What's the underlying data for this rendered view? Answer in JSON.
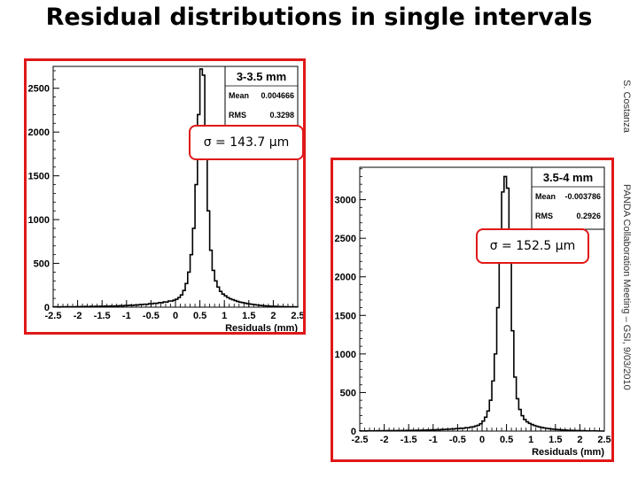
{
  "slide": {
    "title": "Residual distributions in single intervals",
    "author": "S. Costanza",
    "footer": "PANDA Collaboration Meeting – GSI, 9/03/2010"
  },
  "chart_data": [
    {
      "type": "histogram",
      "title": "3-3.5 mm",
      "xlabel": "Residuals (mm)",
      "xlim": [
        -2.5,
        2.5
      ],
      "ylim": [
        0,
        2750
      ],
      "xticks": [
        "-2.5",
        "-2",
        "-1.5",
        "-1",
        "-0.5",
        "0",
        "0.5",
        "1",
        "1.5",
        "2",
        "2.5"
      ],
      "yticks": [
        0,
        500,
        1000,
        1500,
        2000,
        2500
      ],
      "stats": [
        {
          "label": "Mean",
          "value": "0.004666"
        },
        {
          "label": "RMS",
          "value": "0.3298"
        }
      ],
      "sigma_label": "σ = 143.7 μm",
      "bin_width": 0.05,
      "x_start": -2.5,
      "counts": [
        3,
        4,
        2,
        5,
        3,
        6,
        4,
        5,
        3,
        6,
        5,
        7,
        6,
        8,
        5,
        9,
        7,
        10,
        8,
        11,
        9,
        12,
        10,
        13,
        11,
        15,
        13,
        17,
        15,
        20,
        18,
        22,
        20,
        25,
        23,
        30,
        28,
        34,
        32,
        40,
        38,
        45,
        44,
        52,
        50,
        60,
        58,
        70,
        70,
        80,
        90,
        110,
        140,
        190,
        270,
        400,
        600,
        900,
        1400,
        2200,
        2720,
        2650,
        2000,
        1100,
        650,
        420,
        300,
        230,
        180,
        150,
        130,
        110,
        95,
        85,
        75,
        65,
        58,
        52,
        46,
        40,
        36,
        32,
        28,
        24,
        21,
        18,
        16,
        14,
        12,
        10,
        9,
        8,
        7,
        6,
        6,
        5,
        5,
        4,
        4,
        3
      ]
    },
    {
      "type": "histogram",
      "title": "3.5-4 mm",
      "xlabel": "Residuals (mm)",
      "xlim": [
        -2.5,
        2.5
      ],
      "ylim": [
        0,
        3420
      ],
      "xticks": [
        "-2.5",
        "-2",
        "-1.5",
        "-1",
        "-0.5",
        "0",
        "0.5",
        "1",
        "1.5",
        "2",
        "2.5"
      ],
      "yticks": [
        0,
        500,
        1000,
        1500,
        2000,
        2500,
        3000
      ],
      "stats": [
        {
          "label": "Mean",
          "value": "-0.003786"
        },
        {
          "label": "RMS",
          "value": "0.2926"
        }
      ],
      "sigma_label": "σ = 152.5 μm",
      "bin_width": 0.05,
      "x_start": -2.5,
      "counts": [
        2,
        3,
        2,
        4,
        3,
        4,
        3,
        5,
        4,
        5,
        4,
        6,
        5,
        6,
        5,
        7,
        6,
        8,
        7,
        9,
        8,
        10,
        9,
        11,
        10,
        12,
        11,
        14,
        13,
        16,
        15,
        18,
        17,
        21,
        20,
        24,
        23,
        28,
        27,
        33,
        32,
        38,
        37,
        44,
        43,
        52,
        55,
        65,
        75,
        95,
        130,
        180,
        260,
        400,
        650,
        1000,
        1600,
        2400,
        3100,
        3300,
        3150,
        2300,
        1300,
        700,
        420,
        280,
        200,
        150,
        120,
        100,
        85,
        72,
        62,
        54,
        47,
        41,
        36,
        31,
        27,
        24,
        21,
        18,
        16,
        14,
        12,
        10,
        9,
        8,
        7,
        6,
        5,
        5,
        4,
        4,
        3,
        3
      ]
    }
  ]
}
